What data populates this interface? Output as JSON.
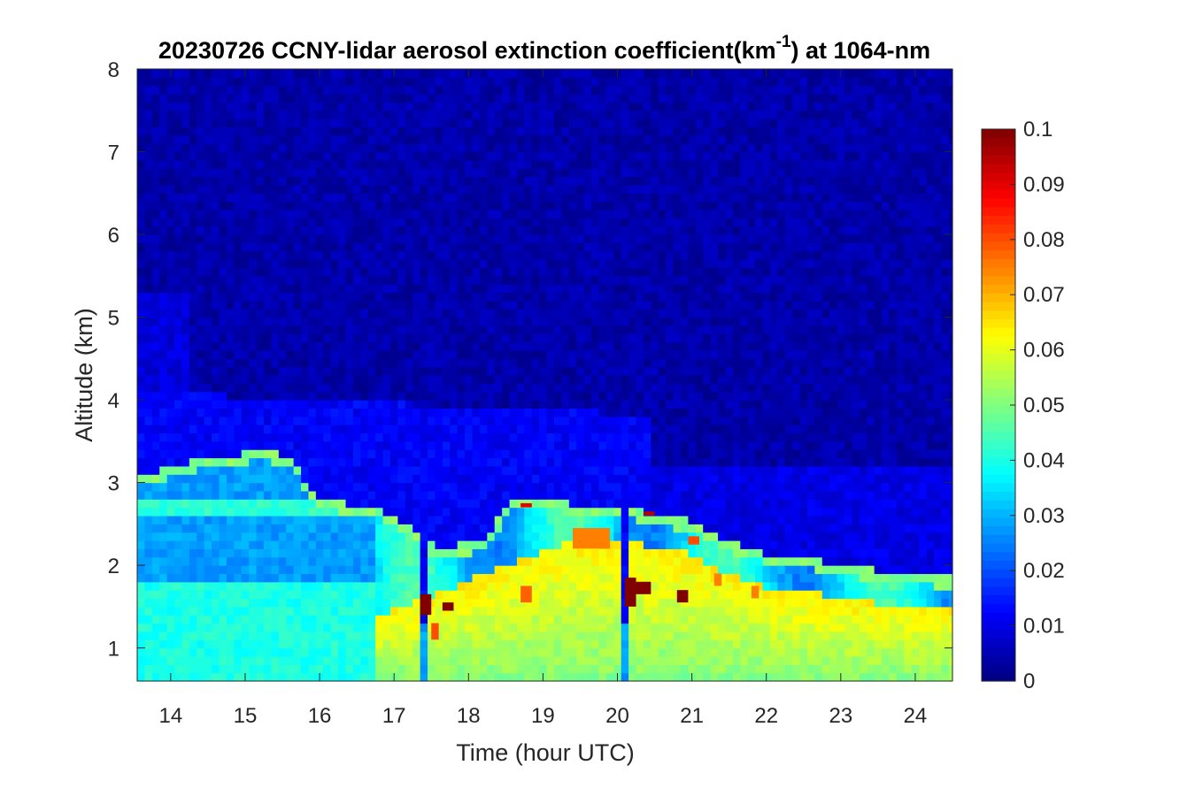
{
  "chart_data": {
    "type": "heatmap",
    "title": {
      "main": "20230726 CCNY-lidar aerosol extinction coefficient(km",
      "superscript": "-1",
      "suffix": ") at 1064-nm"
    },
    "xlabel": "Time (hour UTC)",
    "ylabel": "Altitude (km)",
    "xlim": [
      13.55,
      24.5
    ],
    "ylim": [
      0.6,
      8
    ],
    "x_ticks": [
      "14",
      "15",
      "16",
      "17",
      "18",
      "19",
      "20",
      "21",
      "22",
      "23",
      "24"
    ],
    "y_ticks": [
      "1",
      "2",
      "3",
      "4",
      "5",
      "6",
      "7",
      "8"
    ],
    "colorbar": {
      "min": 0,
      "max": 0.1,
      "colormap": "jet",
      "ticks": [
        "0",
        "0.01",
        "0.02",
        "0.03",
        "0.04",
        "0.05",
        "0.06",
        "0.07",
        "0.08",
        "0.09",
        "0.1"
      ]
    },
    "time_step_hours": 0.1,
    "altitude_step_km": 0.1,
    "time_columns": 110,
    "altitude_rows": 74,
    "profile_model": {
      "free_troposphere_value": 0.004,
      "residual_layer": {
        "top_km": 4.1,
        "value": 0.012,
        "start_hour": 13.55,
        "end_hour": 20.5
      },
      "elevated_layer": {
        "top_km": 5.3,
        "value": 0.009,
        "end_hour": 14.3
      },
      "boundary_layer_top_km": [
        [
          13.6,
          3.1
        ],
        [
          14.5,
          3.3
        ],
        [
          15.3,
          3.4
        ],
        [
          15.6,
          3.3
        ],
        [
          16.0,
          2.8
        ],
        [
          16.8,
          2.7
        ],
        [
          17.0,
          2.6
        ],
        [
          17.6,
          2.2
        ],
        [
          18.2,
          2.3
        ],
        [
          18.6,
          2.8
        ],
        [
          19.0,
          2.85
        ],
        [
          19.5,
          2.7
        ],
        [
          20.0,
          2.75
        ],
        [
          20.5,
          2.6
        ],
        [
          21.0,
          2.55
        ],
        [
          21.5,
          2.3
        ],
        [
          22.0,
          2.15
        ],
        [
          22.5,
          2.1
        ],
        [
          23.0,
          2.0
        ],
        [
          23.5,
          1.95
        ],
        [
          24.0,
          1.9
        ],
        [
          24.5,
          1.85
        ]
      ],
      "boundary_layer_value": 0.028,
      "lower_mixed_layer": {
        "top_km": 1.8,
        "value": 0.04
      },
      "convective_layer": {
        "start_hour": 16.8,
        "value": 0.05,
        "peak_value": 0.064
      },
      "clear_column_hours": [
        17.35,
        17.45,
        20.05,
        20.15
      ]
    },
    "hot_spots": [
      {
        "x0": 17.35,
        "x1": 17.5,
        "y0": 1.4,
        "y1": 1.65,
        "value": 0.1
      },
      {
        "x0": 17.65,
        "x1": 17.8,
        "y0": 1.45,
        "y1": 1.55,
        "value": 0.1
      },
      {
        "x0": 18.7,
        "x1": 18.85,
        "y0": 2.7,
        "y1": 2.75,
        "value": 0.09
      },
      {
        "x0": 20.1,
        "x1": 20.25,
        "y0": 1.5,
        "y1": 1.85,
        "value": 0.1
      },
      {
        "x0": 20.25,
        "x1": 20.45,
        "y0": 1.65,
        "y1": 1.8,
        "value": 0.1
      },
      {
        "x0": 20.8,
        "x1": 20.95,
        "y0": 1.55,
        "y1": 1.7,
        "value": 0.1
      },
      {
        "x0": 20.35,
        "x1": 20.5,
        "y0": 2.6,
        "y1": 2.65,
        "value": 0.095
      },
      {
        "x0": 19.4,
        "x1": 19.9,
        "y0": 2.2,
        "y1": 2.45,
        "value": 0.075
      },
      {
        "x0": 18.7,
        "x1": 18.85,
        "y0": 1.55,
        "y1": 1.75,
        "value": 0.078
      },
      {
        "x0": 17.5,
        "x1": 17.6,
        "y0": 1.1,
        "y1": 1.3,
        "value": 0.08
      },
      {
        "x0": 21.3,
        "x1": 21.4,
        "y0": 1.75,
        "y1": 1.9,
        "value": 0.075
      },
      {
        "x0": 21.8,
        "x1": 21.9,
        "y0": 1.6,
        "y1": 1.75,
        "value": 0.075
      },
      {
        "x0": 20.95,
        "x1": 21.1,
        "y0": 2.25,
        "y1": 2.35,
        "value": 0.08
      }
    ]
  }
}
